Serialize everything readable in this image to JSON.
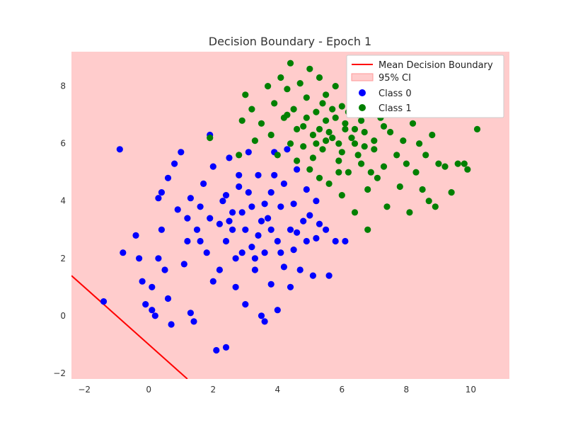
{
  "chart_data": {
    "type": "scatter",
    "title": "Decision Boundary - Epoch 1",
    "xlabel": "",
    "ylabel": "",
    "xlim": [
      -2.4,
      11.2
    ],
    "ylim": [
      -2.2,
      9.2
    ],
    "xticks": [
      -2,
      0,
      2,
      4,
      6,
      8,
      10
    ],
    "yticks": [
      -2,
      0,
      2,
      4,
      6,
      8
    ],
    "grid": false,
    "legend_position": "top-right",
    "ci_band": {
      "name": "95% CI",
      "color": "#ffcccc",
      "covers_plot": true
    },
    "boundary": {
      "name": "Mean Decision Boundary",
      "color": "#ff0000",
      "points": [
        [
          -2.4,
          1.4
        ],
        [
          1.2,
          -2.2
        ]
      ]
    },
    "series": [
      {
        "name": "Class 0",
        "color": "#0000ff",
        "points": [
          [
            -1.4,
            0.5
          ],
          [
            -0.9,
            5.8
          ],
          [
            -0.8,
            2.2
          ],
          [
            -0.4,
            2.8
          ],
          [
            -0.3,
            2.0
          ],
          [
            -0.2,
            1.2
          ],
          [
            -0.1,
            0.4
          ],
          [
            0.1,
            0.2
          ],
          [
            0.2,
            0.0
          ],
          [
            0.1,
            1.0
          ],
          [
            0.3,
            2.0
          ],
          [
            0.3,
            4.1
          ],
          [
            0.4,
            4.3
          ],
          [
            0.4,
            3.0
          ],
          [
            0.5,
            1.6
          ],
          [
            0.6,
            0.6
          ],
          [
            0.7,
            -0.3
          ],
          [
            0.6,
            4.8
          ],
          [
            0.8,
            5.3
          ],
          [
            0.9,
            3.7
          ],
          [
            1.0,
            5.7
          ],
          [
            1.1,
            1.8
          ],
          [
            1.2,
            2.6
          ],
          [
            1.2,
            3.4
          ],
          [
            1.3,
            4.1
          ],
          [
            1.3,
            0.1
          ],
          [
            1.4,
            -0.2
          ],
          [
            1.5,
            3.0
          ],
          [
            1.6,
            3.8
          ],
          [
            1.7,
            4.6
          ],
          [
            1.8,
            2.2
          ],
          [
            1.9,
            6.3
          ],
          [
            2.0,
            5.2
          ],
          [
            2.0,
            1.2
          ],
          [
            2.1,
            -1.2
          ],
          [
            2.2,
            3.2
          ],
          [
            2.3,
            4.0
          ],
          [
            2.4,
            -1.1
          ],
          [
            2.4,
            2.6
          ],
          [
            2.5,
            5.5
          ],
          [
            2.6,
            3.6
          ],
          [
            2.7,
            1.0
          ],
          [
            2.8,
            4.5
          ],
          [
            2.9,
            2.2
          ],
          [
            3.0,
            3.0
          ],
          [
            3.0,
            0.4
          ],
          [
            3.1,
            5.7
          ],
          [
            3.2,
            3.8
          ],
          [
            3.3,
            1.6
          ],
          [
            3.4,
            2.8
          ],
          [
            3.4,
            4.9
          ],
          [
            3.5,
            0.0
          ],
          [
            3.6,
            -0.2
          ],
          [
            3.6,
            2.2
          ],
          [
            3.7,
            3.4
          ],
          [
            3.8,
            4.3
          ],
          [
            3.8,
            1.1
          ],
          [
            3.9,
            5.7
          ],
          [
            4.0,
            2.6
          ],
          [
            4.0,
            0.2
          ],
          [
            4.1,
            3.8
          ],
          [
            4.2,
            1.7
          ],
          [
            4.2,
            4.6
          ],
          [
            4.3,
            5.8
          ],
          [
            4.4,
            3.0
          ],
          [
            4.4,
            1.0
          ],
          [
            4.5,
            2.3
          ],
          [
            4.5,
            3.9
          ],
          [
            4.6,
            5.1
          ],
          [
            4.7,
            1.6
          ],
          [
            4.8,
            3.3
          ],
          [
            4.9,
            2.6
          ],
          [
            4.9,
            4.4
          ],
          [
            5.0,
            3.5
          ],
          [
            5.1,
            1.4
          ],
          [
            5.2,
            2.7
          ],
          [
            5.2,
            4.0
          ],
          [
            5.3,
            3.2
          ],
          [
            5.5,
            3.0
          ],
          [
            5.6,
            1.4
          ],
          [
            5.8,
            2.6
          ],
          [
            6.1,
            2.6
          ],
          [
            2.6,
            3.0
          ],
          [
            2.9,
            3.6
          ],
          [
            3.2,
            2.4
          ],
          [
            3.5,
            3.3
          ],
          [
            2.4,
            4.2
          ],
          [
            2.7,
            2.0
          ],
          [
            3.8,
            3.0
          ],
          [
            3.1,
            4.3
          ],
          [
            1.6,
            2.6
          ],
          [
            2.2,
            1.6
          ],
          [
            4.6,
            2.9
          ],
          [
            3.6,
            3.9
          ],
          [
            2.8,
            4.9
          ],
          [
            1.9,
            3.4
          ],
          [
            3.3,
            2.0
          ],
          [
            4.1,
            2.2
          ],
          [
            2.5,
            3.3
          ],
          [
            3.9,
            4.9
          ]
        ]
      },
      {
        "name": "Class 1",
        "color": "#008000",
        "points": [
          [
            1.9,
            6.2
          ],
          [
            2.8,
            5.6
          ],
          [
            2.9,
            6.8
          ],
          [
            3.0,
            7.7
          ],
          [
            3.2,
            7.2
          ],
          [
            3.3,
            6.1
          ],
          [
            3.5,
            6.7
          ],
          [
            3.7,
            8.0
          ],
          [
            3.8,
            6.3
          ],
          [
            3.9,
            7.4
          ],
          [
            4.0,
            5.6
          ],
          [
            4.1,
            8.3
          ],
          [
            4.2,
            6.9
          ],
          [
            4.3,
            7.9
          ],
          [
            4.4,
            8.8
          ],
          [
            4.4,
            6.0
          ],
          [
            4.5,
            7.2
          ],
          [
            4.6,
            5.4
          ],
          [
            4.7,
            8.1
          ],
          [
            4.8,
            6.6
          ],
          [
            4.9,
            7.6
          ],
          [
            5.0,
            5.1
          ],
          [
            5.0,
            8.6
          ],
          [
            5.1,
            6.3
          ],
          [
            5.2,
            7.1
          ],
          [
            5.3,
            4.8
          ],
          [
            5.3,
            8.3
          ],
          [
            5.4,
            5.8
          ],
          [
            5.5,
            6.8
          ],
          [
            5.5,
            7.7
          ],
          [
            5.6,
            4.6
          ],
          [
            5.7,
            6.2
          ],
          [
            5.8,
            8.0
          ],
          [
            5.9,
            5.4
          ],
          [
            6.0,
            7.3
          ],
          [
            6.0,
            4.2
          ],
          [
            6.1,
            6.5
          ],
          [
            6.2,
            5.0
          ],
          [
            6.3,
            7.9
          ],
          [
            6.4,
            6.0
          ],
          [
            6.4,
            3.6
          ],
          [
            6.5,
            7.0
          ],
          [
            6.6,
            5.3
          ],
          [
            6.7,
            6.4
          ],
          [
            6.8,
            4.4
          ],
          [
            6.8,
            3.0
          ],
          [
            6.9,
            7.6
          ],
          [
            7.0,
            5.8
          ],
          [
            7.1,
            4.8
          ],
          [
            7.2,
            6.9
          ],
          [
            7.3,
            5.2
          ],
          [
            7.4,
            3.8
          ],
          [
            7.5,
            6.4
          ],
          [
            7.6,
            7.2
          ],
          [
            7.7,
            5.6
          ],
          [
            7.8,
            4.5
          ],
          [
            7.9,
            6.1
          ],
          [
            8.0,
            5.3
          ],
          [
            8.1,
            3.6
          ],
          [
            8.2,
            6.7
          ],
          [
            8.3,
            5.0
          ],
          [
            8.4,
            6.0
          ],
          [
            8.5,
            4.4
          ],
          [
            8.6,
            5.6
          ],
          [
            8.7,
            4.0
          ],
          [
            8.8,
            6.3
          ],
          [
            8.9,
            3.8
          ],
          [
            9.0,
            5.3
          ],
          [
            9.2,
            5.2
          ],
          [
            9.4,
            4.3
          ],
          [
            9.6,
            5.3
          ],
          [
            9.8,
            5.3
          ],
          [
            9.9,
            5.1
          ],
          [
            10.0,
            7.4
          ],
          [
            10.2,
            6.5
          ],
          [
            5.2,
            6.0
          ],
          [
            5.6,
            6.4
          ],
          [
            6.0,
            5.7
          ],
          [
            5.8,
            6.9
          ],
          [
            6.3,
            6.2
          ],
          [
            5.4,
            7.4
          ],
          [
            4.8,
            5.9
          ],
          [
            6.6,
            6.8
          ],
          [
            5.9,
            5.0
          ],
          [
            6.2,
            7.1
          ],
          [
            4.6,
            6.5
          ],
          [
            7.0,
            6.1
          ],
          [
            5.1,
            5.5
          ],
          [
            6.5,
            5.6
          ],
          [
            5.7,
            7.2
          ],
          [
            4.3,
            7.0
          ],
          [
            6.9,
            5.0
          ],
          [
            5.5,
            6.1
          ],
          [
            6.1,
            6.7
          ],
          [
            7.3,
            6.6
          ],
          [
            4.9,
            6.9
          ],
          [
            6.7,
            5.9
          ],
          [
            5.3,
            6.5
          ],
          [
            6.4,
            6.5
          ],
          [
            5.9,
            6.0
          ]
        ]
      }
    ]
  }
}
